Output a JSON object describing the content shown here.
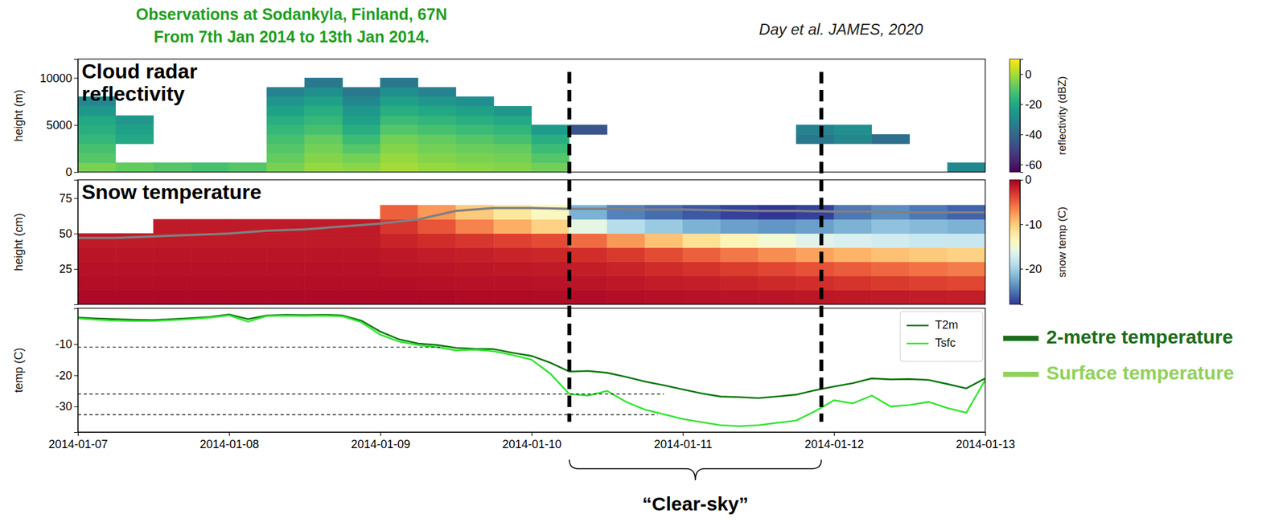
{
  "title": "Observations at Sodankyla, Finland, 67N",
  "subtitle": "From 7th Jan 2014 to 13th Jan 2014.",
  "source": "Day et al. JAMES, 2020",
  "annotations": {
    "clear_sky": {
      "text": "“Clear-sky”",
      "x": [
        "2014-01-10T06:00",
        "2014-01-11T22:00"
      ]
    }
  },
  "side_legend": [
    {
      "text": "2-metre temperature",
      "color": "#1b6e1b"
    },
    {
      "text": "Surface temperature",
      "color": "#8fd15a"
    }
  ],
  "chart_data": [
    {
      "type": "heatmap",
      "label": "Cloud radar reflectivity",
      "y_label": "height (m)",
      "xlim": [
        "2014-01-07",
        "2014-01-13"
      ],
      "ylim": [
        0,
        12000
      ],
      "yticks": [
        0,
        5000,
        10000
      ],
      "tick_labels": "y",
      "x_edges": [
        "2014-01-07T00:00",
        "2014-01-07T06:00",
        "2014-01-07T12:00",
        "2014-01-07T18:00",
        "2014-01-08T00:00",
        "2014-01-08T06:00",
        "2014-01-08T12:00",
        "2014-01-08T18:00",
        "2014-01-09T00:00",
        "2014-01-09T06:00",
        "2014-01-09T12:00",
        "2014-01-09T18:00",
        "2014-01-10T00:00",
        "2014-01-10T06:00",
        "2014-01-10T12:00",
        "2014-01-10T18:00",
        "2014-01-11T00:00",
        "2014-01-11T06:00",
        "2014-01-11T12:00",
        "2014-01-11T18:00",
        "2014-01-12T00:00",
        "2014-01-12T06:00",
        "2014-01-12T12:00",
        "2014-01-12T18:00",
        "2014-01-13T00:00"
      ],
      "y_edges": [
        0,
        1000,
        2000,
        3000,
        4000,
        5000,
        6000,
        7000,
        8000,
        9000,
        10000
      ],
      "cells": [
        [
          -5,
          -8,
          -10,
          -12,
          -10,
          -5,
          -2,
          -3,
          0,
          -2,
          -3,
          -4,
          -6,
          null,
          null,
          null,
          null,
          null,
          null,
          null,
          null,
          null,
          null,
          -30
        ],
        [
          -10,
          null,
          null,
          null,
          null,
          -8,
          -4,
          -6,
          -2,
          -4,
          -5,
          -6,
          -10,
          null,
          null,
          null,
          null,
          null,
          null,
          null,
          null,
          null,
          null,
          null
        ],
        [
          -12,
          null,
          null,
          null,
          null,
          -10,
          -6,
          -10,
          -4,
          -6,
          -7,
          -8,
          -14,
          null,
          null,
          null,
          null,
          null,
          null,
          null,
          null,
          null,
          null,
          null
        ],
        [
          -15,
          -20,
          null,
          null,
          null,
          -12,
          -8,
          -14,
          -6,
          -8,
          -10,
          -12,
          -18,
          null,
          null,
          null,
          null,
          null,
          null,
          -35,
          -30,
          -38,
          null,
          null
        ],
        [
          -18,
          -22,
          null,
          null,
          null,
          -15,
          -12,
          -18,
          -10,
          -12,
          -14,
          -16,
          -24,
          -45,
          null,
          null,
          null,
          null,
          null,
          -32,
          -28,
          null,
          null,
          null
        ],
        [
          -20,
          -25,
          null,
          null,
          null,
          -18,
          -15,
          -22,
          -14,
          -16,
          -18,
          -20,
          null,
          null,
          null,
          null,
          null,
          null,
          null,
          null,
          null,
          null,
          null,
          null
        ],
        [
          -25,
          null,
          null,
          null,
          null,
          -22,
          -18,
          -25,
          -18,
          -20,
          -22,
          -26,
          null,
          null,
          null,
          null,
          null,
          null,
          null,
          null,
          null,
          null,
          null,
          null
        ],
        [
          -30,
          null,
          null,
          null,
          null,
          -26,
          -22,
          -30,
          -22,
          -25,
          -28,
          null,
          null,
          null,
          null,
          null,
          null,
          null,
          null,
          null,
          null,
          null,
          null,
          null
        ],
        [
          null,
          null,
          null,
          null,
          null,
          -32,
          -28,
          -35,
          -28,
          -32,
          null,
          null,
          null,
          null,
          null,
          null,
          null,
          null,
          null,
          null,
          null,
          null,
          null,
          null
        ],
        [
          null,
          null,
          null,
          null,
          null,
          null,
          -35,
          null,
          -35,
          null,
          null,
          null,
          null,
          null,
          null,
          null,
          null,
          null,
          null,
          null,
          null,
          null,
          null,
          null
        ]
      ],
      "colorbar": {
        "label": "reflectivity (dBZ)",
        "lim": [
          -65,
          10
        ],
        "ticks": [
          0,
          -20,
          -40,
          -60
        ]
      }
    },
    {
      "type": "heatmap",
      "label": "Snow temperature",
      "y_label": "height (cm)",
      "xlim": [
        "2014-01-07",
        "2014-01-13"
      ],
      "ylim": [
        0,
        88
      ],
      "yticks": [
        25,
        50,
        75
      ],
      "tick_labels": "y",
      "x_edges": [
        "2014-01-07T00:00",
        "2014-01-07T06:00",
        "2014-01-07T12:00",
        "2014-01-07T18:00",
        "2014-01-08T00:00",
        "2014-01-08T06:00",
        "2014-01-08T12:00",
        "2014-01-08T18:00",
        "2014-01-09T00:00",
        "2014-01-09T06:00",
        "2014-01-09T12:00",
        "2014-01-09T18:00",
        "2014-01-10T00:00",
        "2014-01-10T06:00",
        "2014-01-10T12:00",
        "2014-01-10T18:00",
        "2014-01-11T00:00",
        "2014-01-11T06:00",
        "2014-01-11T12:00",
        "2014-01-11T18:00",
        "2014-01-12T00:00",
        "2014-01-12T06:00",
        "2014-01-12T12:00",
        "2014-01-12T18:00",
        "2014-01-13T00:00"
      ],
      "y_edges": [
        0,
        10,
        20,
        30,
        40,
        50,
        60,
        70
      ],
      "cells": [
        [
          -0.5,
          -0.5,
          -0.5,
          -0.5,
          -0.5,
          -0.5,
          -0.5,
          -0.5,
          -0.5,
          -0.5,
          -0.6,
          -0.6,
          -0.7,
          -0.7,
          -0.8,
          -0.9,
          -1.0,
          -1.1,
          -1.2,
          -1.3,
          -1.4,
          -1.5,
          -1.6,
          -1.7
        ],
        [
          -0.8,
          -0.8,
          -0.8,
          -0.8,
          -0.8,
          -0.8,
          -0.8,
          -0.8,
          -0.8,
          -0.9,
          -1.0,
          -1.0,
          -1.1,
          -1.2,
          -1.4,
          -1.6,
          -1.8,
          -2.0,
          -2.3,
          -2.6,
          -2.9,
          -3.2,
          -3.5,
          -3.8
        ],
        [
          -1.0,
          -1.0,
          -1.0,
          -1.0,
          -1.0,
          -1.0,
          -1.0,
          -1.0,
          -1.1,
          -1.2,
          -1.3,
          -1.4,
          -1.5,
          -1.7,
          -2.0,
          -2.4,
          -2.8,
          -3.3,
          -3.8,
          -4.3,
          -4.8,
          -5.3,
          -5.8,
          -6.2
        ],
        [
          -1.2,
          -1.2,
          -1.2,
          -1.2,
          -1.2,
          -1.2,
          -1.2,
          -1.2,
          -1.4,
          -1.6,
          -1.8,
          -2.0,
          -2.2,
          -2.6,
          -3.2,
          -4.0,
          -5.0,
          -6.0,
          -7.0,
          -8.0,
          -8.8,
          -9.5,
          -10.0,
          -10.5
        ],
        [
          -1.5,
          -1.5,
          -1.5,
          -1.5,
          -1.5,
          -1.5,
          -1.5,
          -1.5,
          -2.0,
          -2.5,
          -3.0,
          -3.5,
          -4.0,
          -5.5,
          -7.5,
          -9.5,
          -11.5,
          -13.5,
          -15.0,
          -16.5,
          -17.0,
          -17.5,
          -18.0,
          -18.0
        ],
        [
          null,
          null,
          -1.5,
          -1.5,
          -1.5,
          -1.5,
          -1.5,
          -1.5,
          -3.0,
          -4.5,
          -6.5,
          -8.5,
          -10.5,
          -16.0,
          -19.0,
          -20.5,
          -22.0,
          -23.0,
          -23.5,
          -23.0,
          -22.0,
          -21.0,
          -21.5,
          -22.0
        ],
        [
          null,
          null,
          null,
          null,
          null,
          null,
          null,
          null,
          -5.0,
          -7.5,
          -10.0,
          -12.0,
          -14.0,
          -22.0,
          -24.5,
          -25.5,
          -26.5,
          -27.5,
          -28.0,
          -27.5,
          -25.0,
          -24.0,
          -25.0,
          -26.0
        ]
      ],
      "snow_depth": {
        "x": [
          "2014-01-07T00:00",
          "2014-01-07T06:00",
          "2014-01-07T12:00",
          "2014-01-07T18:00",
          "2014-01-08T00:00",
          "2014-01-08T06:00",
          "2014-01-08T12:00",
          "2014-01-08T18:00",
          "2014-01-09T00:00",
          "2014-01-09T06:00",
          "2014-01-09T12:00",
          "2014-01-09T18:00",
          "2014-01-10T00:00",
          "2014-01-10T06:00",
          "2014-01-10T12:00",
          "2014-01-10T18:00",
          "2014-01-11T00:00",
          "2014-01-11T06:00",
          "2014-01-11T12:00",
          "2014-01-11T18:00",
          "2014-01-12T00:00",
          "2014-01-12T06:00",
          "2014-01-12T12:00",
          "2014-01-12T18:00",
          "2014-01-13T00:00"
        ],
        "values": [
          47,
          47,
          48,
          49,
          50,
          52,
          53,
          55,
          57,
          60,
          66,
          68,
          68,
          67.5,
          67.5,
          67,
          67,
          66.5,
          66,
          66,
          65.5,
          65.5,
          65,
          65,
          65
        ],
        "color": "#808080"
      },
      "colorbar": {
        "label": "snow temp (C)",
        "lim": [
          -28,
          0
        ],
        "ticks": [
          0,
          -10,
          -20
        ]
      }
    },
    {
      "type": "line",
      "y_label": "temp (C)",
      "xlim": [
        "2014-01-07",
        "2014-01-13"
      ],
      "xticks": [
        "2014-01-07",
        "2014-01-08",
        "2014-01-09",
        "2014-01-10",
        "2014-01-11",
        "2014-01-12",
        "2014-01-13"
      ],
      "ylim": [
        -38.2,
        1.5
      ],
      "yticks": [
        -10,
        -20,
        -30
      ],
      "legend": "upper right",
      "x": [
        "2014-01-07T00:00",
        "2014-01-07T03:00",
        "2014-01-07T06:00",
        "2014-01-07T09:00",
        "2014-01-07T12:00",
        "2014-01-07T15:00",
        "2014-01-07T18:00",
        "2014-01-07T21:00",
        "2014-01-08T00:00",
        "2014-01-08T03:00",
        "2014-01-08T06:00",
        "2014-01-08T09:00",
        "2014-01-08T12:00",
        "2014-01-08T15:00",
        "2014-01-08T18:00",
        "2014-01-08T21:00",
        "2014-01-09T00:00",
        "2014-01-09T03:00",
        "2014-01-09T06:00",
        "2014-01-09T09:00",
        "2014-01-09T12:00",
        "2014-01-09T15:00",
        "2014-01-09T18:00",
        "2014-01-09T21:00",
        "2014-01-10T00:00",
        "2014-01-10T03:00",
        "2014-01-10T06:00",
        "2014-01-10T09:00",
        "2014-01-10T12:00",
        "2014-01-10T15:00",
        "2014-01-10T18:00",
        "2014-01-10T21:00",
        "2014-01-11T00:00",
        "2014-01-11T03:00",
        "2014-01-11T06:00",
        "2014-01-11T09:00",
        "2014-01-11T12:00",
        "2014-01-11T15:00",
        "2014-01-11T18:00",
        "2014-01-11T21:00",
        "2014-01-12T00:00",
        "2014-01-12T03:00",
        "2014-01-12T06:00",
        "2014-01-12T09:00",
        "2014-01-12T12:00",
        "2014-01-12T15:00",
        "2014-01-12T18:00",
        "2014-01-12T21:00",
        "2014-01-13T00:00"
      ],
      "series": [
        {
          "name": "T2m",
          "color": "#0b780b",
          "values": [
            -1.5,
            -1.8,
            -2.0,
            -2.2,
            -2.3,
            -2.0,
            -1.7,
            -1.3,
            -0.5,
            -2.0,
            -0.8,
            -0.6,
            -0.7,
            -0.6,
            -0.8,
            -2.5,
            -6.0,
            -8.5,
            -9.8,
            -10.3,
            -11.2,
            -11.5,
            -11.6,
            -12.8,
            -13.8,
            -16.0,
            -18.8,
            -18.6,
            -19.2,
            -20.5,
            -22.0,
            -23.2,
            -24.5,
            -25.8,
            -26.8,
            -27.0,
            -27.3,
            -26.8,
            -26.2,
            -24.8,
            -23.6,
            -22.5,
            -21.0,
            -21.3,
            -21.2,
            -21.5,
            -22.8,
            -24.2,
            -21.0
          ]
        },
        {
          "name": "Tsfc",
          "color": "#2fe52f",
          "values": [
            -1.8,
            -2.2,
            -2.5,
            -2.6,
            -2.6,
            -2.3,
            -2.0,
            -1.5,
            -0.8,
            -2.8,
            -1.0,
            -0.9,
            -1.0,
            -0.9,
            -1.1,
            -3.0,
            -7.0,
            -9.2,
            -10.3,
            -11.0,
            -12.0,
            -11.8,
            -12.3,
            -13.5,
            -15.0,
            -19.5,
            -26.0,
            -26.5,
            -25.0,
            -28.5,
            -31.0,
            -32.5,
            -34.0,
            -35.0,
            -36.0,
            -36.3,
            -36.0,
            -35.2,
            -34.5,
            -31.5,
            -28.0,
            -29.0,
            -26.5,
            -30.0,
            -29.5,
            -28.5,
            -30.5,
            -32.0,
            -21.5
          ]
        }
      ],
      "reference_lines": [
        {
          "y": -11,
          "x_end": "2014-01-09T10:00"
        },
        {
          "y": -26,
          "x_end": "2014-01-10T21:00"
        },
        {
          "y": -32.6,
          "x_end": "2014-01-10T20:00"
        }
      ]
    }
  ]
}
